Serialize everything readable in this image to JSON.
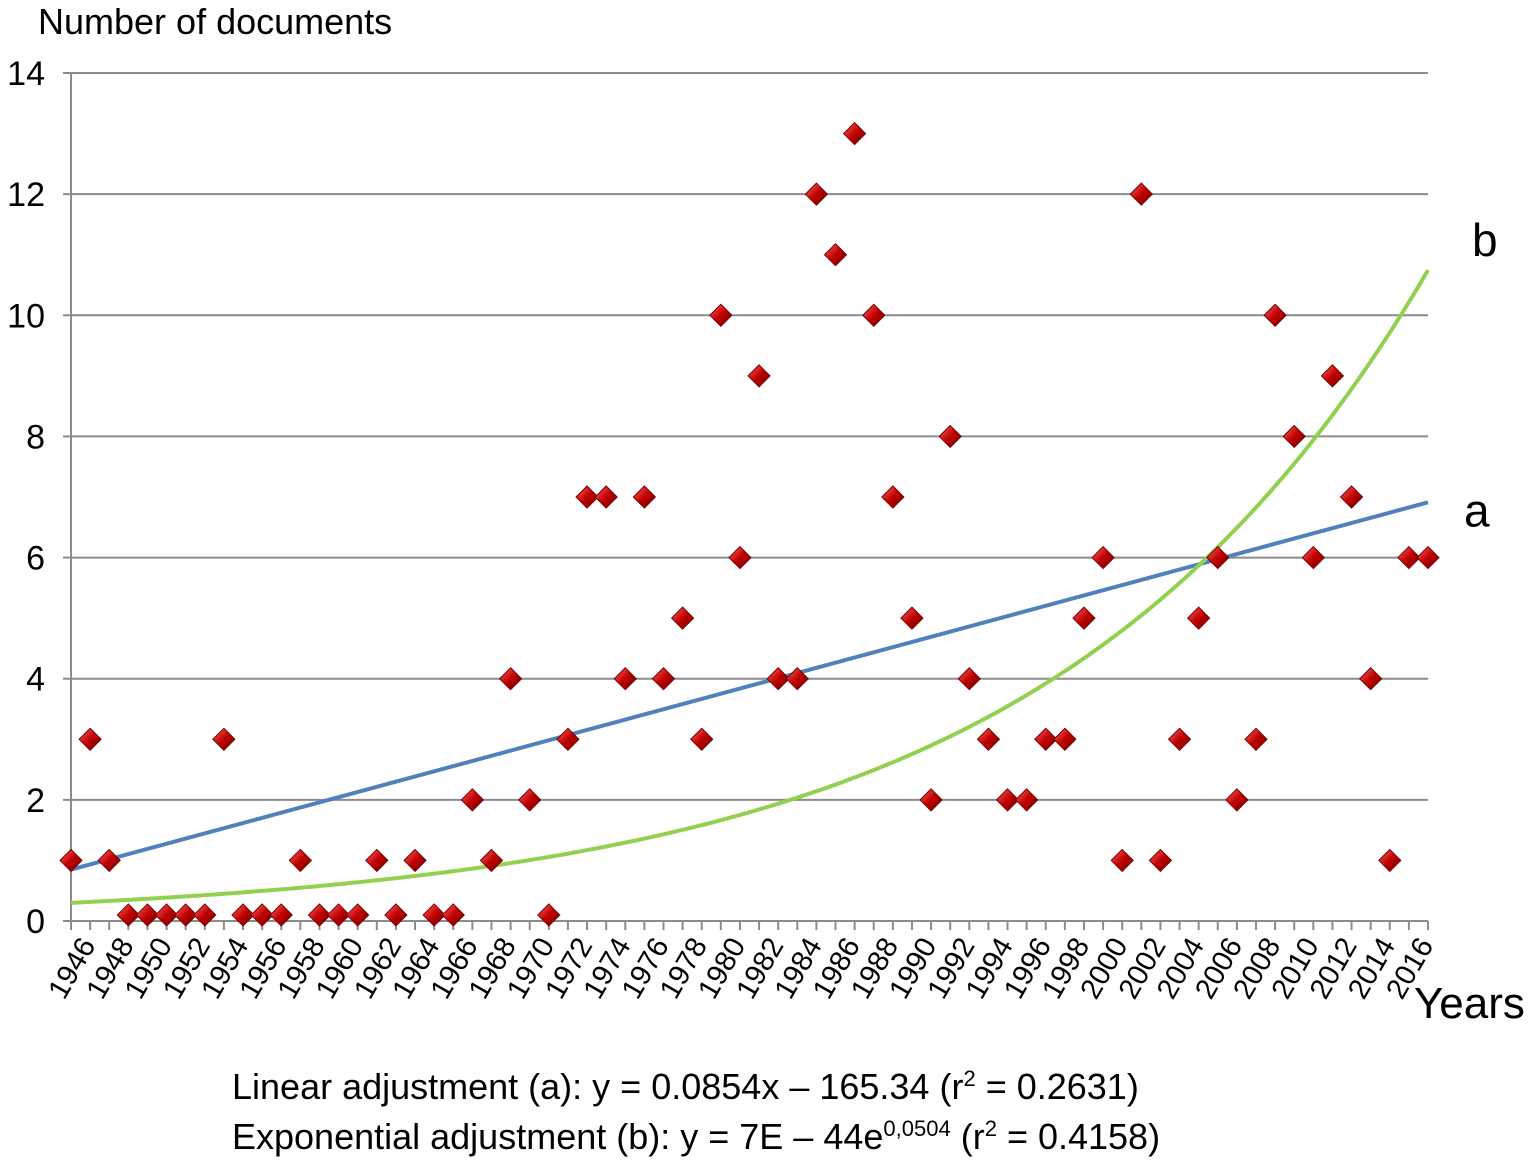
{
  "chart_data": {
    "type": "scatter",
    "ylabel": "Number of documents",
    "xlabel": "Years",
    "ylim": [
      0,
      14
    ],
    "yticks": [
      "0",
      "2",
      "4",
      "6",
      "8",
      "10",
      "12",
      "14"
    ],
    "xlim": [
      1946,
      2017
    ],
    "xtick_labels": [
      "1946",
      "1948",
      "1950",
      "1952",
      "1954",
      "1956",
      "1958",
      "1960",
      "1962",
      "1964",
      "1966",
      "1968",
      "1970",
      "1972",
      "1974",
      "1976",
      "1978",
      "1980",
      "1982",
      "1984",
      "1986",
      "1988",
      "1990",
      "1992",
      "1994",
      "1996",
      "1998",
      "2000",
      "2002",
      "2004",
      "2006",
      "2008",
      "2010",
      "2012",
      "2014",
      "2016"
    ],
    "grid": true,
    "series": [
      {
        "type": "scatter",
        "color": "#c00000",
        "x": [
          1946,
          1947,
          1948,
          1949,
          1950,
          1951,
          1952,
          1953,
          1954,
          1955,
          1956,
          1957,
          1958,
          1959,
          1960,
          1961,
          1962,
          1963,
          1964,
          1965,
          1966,
          1967,
          1968,
          1969,
          1970,
          1971,
          1972,
          1973,
          1974,
          1975,
          1976,
          1977,
          1978,
          1979,
          1980,
          1981,
          1982,
          1983,
          1984,
          1985,
          1986,
          1987,
          1988,
          1989,
          1990,
          1991,
          1992,
          1993,
          1994,
          1995,
          1996,
          1997,
          1998,
          1999,
          2000,
          2001,
          2002,
          2003,
          2004,
          2005,
          2006,
          2007,
          2008,
          2009,
          2010,
          2011,
          2012,
          2013,
          2014,
          2015,
          2016,
          2017
        ],
        "y": [
          1,
          3,
          1,
          0.1,
          0.1,
          0.1,
          0.1,
          0.1,
          3,
          0.1,
          0.1,
          0.1,
          1,
          0.1,
          0.1,
          0.1,
          1,
          0.1,
          1,
          0.1,
          0.1,
          2,
          1,
          4,
          2,
          0.1,
          3,
          7,
          7,
          4,
          7,
          4,
          5,
          3,
          10,
          6,
          9,
          4,
          4,
          12,
          11,
          13,
          10,
          7,
          5,
          2,
          8,
          4,
          3,
          2,
          2,
          3,
          3,
          5,
          6,
          1,
          12,
          1,
          3,
          5,
          6,
          2,
          3,
          10,
          8,
          6,
          9,
          7,
          4,
          1,
          6,
          6
        ]
      },
      {
        "type": "line",
        "label": "a",
        "color": "#4f81bd",
        "equation": "linear",
        "slope": 0.0854,
        "intercept": -165.34
      },
      {
        "type": "line",
        "label": "b",
        "color": "#92d050",
        "equation": "exponential",
        "start_value": 0.3,
        "rate": 0.0504
      }
    ],
    "annotations": {
      "linear_caption": "Linear adjustment (a): y = 0.0854x – 165.34 (r",
      "linear_r2": "2",
      "linear_tail": " = 0.2631)",
      "exp_caption": "Exponential adjustment (b): y = 7E – 44e",
      "exp_power": "0,0504",
      "exp_mid": " (r",
      "exp_r2": "2",
      "exp_tail": " = 0.4158)"
    }
  }
}
